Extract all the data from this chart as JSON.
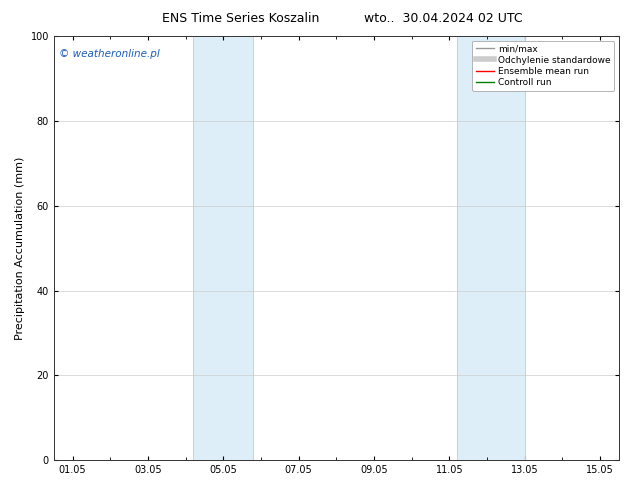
{
  "title_left": "ENS Time Series Koszalin",
  "title_right": "wto..  30.04.2024 02 UTC",
  "ylabel": "Precipitation Accumulation (mm)",
  "ylim": [
    0,
    100
  ],
  "yticks": [
    0,
    20,
    40,
    60,
    80,
    100
  ],
  "x_min": 0.5,
  "x_max": 15.5,
  "x_tick_labels": [
    "01.05",
    "03.05",
    "05.05",
    "07.05",
    "09.05",
    "11.05",
    "13.05",
    "15.05"
  ],
  "x_tick_positions": [
    1,
    3,
    5,
    7,
    9,
    11,
    13,
    15
  ],
  "x_minor_ticks": [
    2,
    4,
    6,
    8,
    10,
    12,
    14
  ],
  "shaded_bands": [
    {
      "x_start": 4.2,
      "x_end": 5.8,
      "color": "#ddeef9"
    },
    {
      "x_start": 11.2,
      "x_end": 13.0,
      "color": "#ddeef9"
    }
  ],
  "band_lines": [
    {
      "x": 4.2,
      "color": "#b8d4ec"
    },
    {
      "x": 5.8,
      "color": "#b8d4ec"
    },
    {
      "x": 11.2,
      "color": "#b8d4ec"
    },
    {
      "x": 13.0,
      "color": "#b8d4ec"
    }
  ],
  "watermark_text": "© weatheronline.pl",
  "watermark_color": "#1a5cbf",
  "watermark_fontsize": 7.5,
  "legend_entries": [
    {
      "label": "min/max",
      "color": "#999999",
      "lw": 1.0
    },
    {
      "label": "Odchylenie standardowe",
      "color": "#cccccc",
      "lw": 4.0
    },
    {
      "label": "Ensemble mean run",
      "color": "red",
      "lw": 1.0
    },
    {
      "label": "Controll run",
      "color": "green",
      "lw": 1.0
    }
  ],
  "bg_color": "#ffffff",
  "plot_bg_color": "#ffffff",
  "grid_color": "#cccccc",
  "title_fontsize": 9,
  "tick_fontsize": 7,
  "label_fontsize": 8,
  "legend_fontsize": 6.5
}
